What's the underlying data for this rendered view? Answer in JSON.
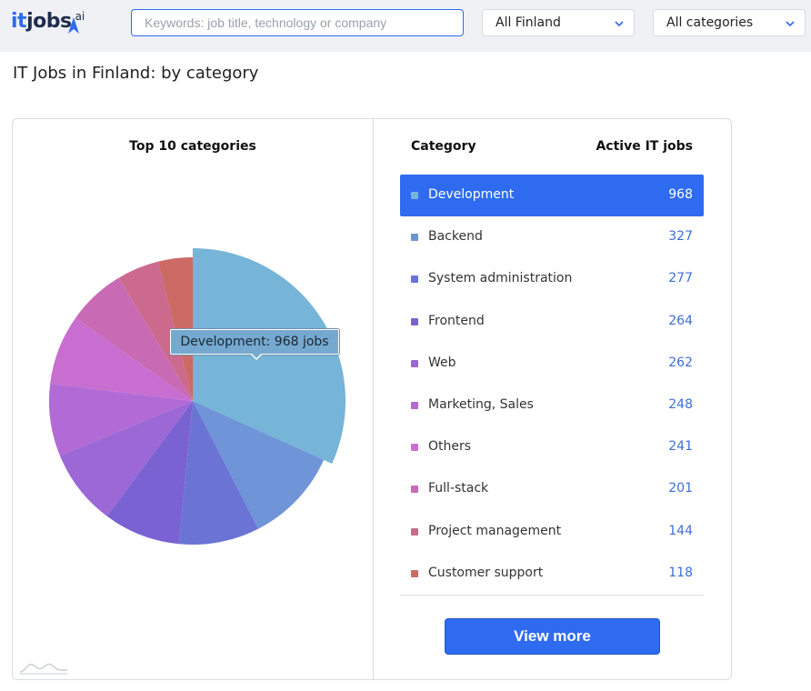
{
  "header": {
    "logo": {
      "it": "it",
      "jobs": "jobs",
      "ai": "ai"
    },
    "search": {
      "placeholder": "Keywords: job title, technology or company"
    },
    "location_select": {
      "value": "All Finland"
    },
    "category_select": {
      "value": "All categories"
    }
  },
  "page_title": "IT Jobs in Finland: by category",
  "tooltip": "Development: 968 jobs",
  "table": {
    "col_category": "Category",
    "col_jobs": "Active IT jobs",
    "active_index": 0
  },
  "view_more_label": "View more",
  "chart_data": {
    "type": "pie",
    "title": "Top 10 categories",
    "categories": [
      "Development",
      "Backend",
      "System administration",
      "Frontend",
      "Web",
      "Marketing, Sales",
      "Others",
      "Full-stack",
      "Project management",
      "Customer support"
    ],
    "values": [
      968,
      327,
      277,
      264,
      262,
      248,
      241,
      201,
      144,
      118
    ],
    "colors": [
      "#76b4d8",
      "#6f94d8",
      "#6b74d4",
      "#7b62d2",
      "#9b68d6",
      "#b26ad6",
      "#c86ed0",
      "#c96ab4",
      "#cc6a8e",
      "#cc6a66"
    ],
    "highlighted": "Development"
  }
}
